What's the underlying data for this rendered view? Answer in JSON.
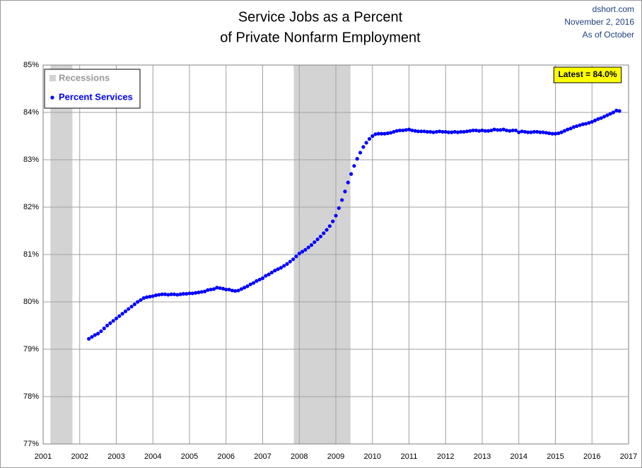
{
  "chart_data": {
    "type": "scatter",
    "title": [
      "Service Jobs as a Percent",
      "of Private Nonfarm Employment"
    ],
    "notes": [
      "dshort.com",
      "November 2, 2016",
      "As of October"
    ],
    "annotation": "Latest = 84.0%",
    "xlim": [
      2001,
      2017
    ],
    "xticks": [
      2001,
      2002,
      2003,
      2004,
      2005,
      2006,
      2007,
      2008,
      2009,
      2010,
      2011,
      2012,
      2013,
      2014,
      2015,
      2016,
      2017
    ],
    "ylim": [
      77,
      85
    ],
    "yticks": [
      {
        "value": 77,
        "label": "77%"
      },
      {
        "value": 78,
        "label": "78%"
      },
      {
        "value": 79,
        "label": "79%"
      },
      {
        "value": 80,
        "label": "80%"
      },
      {
        "value": 81,
        "label": "81%"
      },
      {
        "value": 82,
        "label": "82%"
      },
      {
        "value": 83,
        "label": "83%"
      },
      {
        "value": 84,
        "label": "84%"
      },
      {
        "value": 85,
        "label": "85%"
      }
    ],
    "grid": true,
    "legend": "top-left",
    "recessions": {
      "name": "Recessions",
      "color": "#d3d3d3",
      "spans": [
        [
          2001.2,
          2001.8
        ],
        [
          2007.85,
          2009.4
        ]
      ]
    },
    "x": [
      2002.25,
      2002.333,
      2002.417,
      2002.5,
      2002.583,
      2002.667,
      2002.75,
      2002.833,
      2002.917,
      2003.0,
      2003.083,
      2003.167,
      2003.25,
      2003.333,
      2003.417,
      2003.5,
      2003.583,
      2003.667,
      2003.75,
      2003.833,
      2003.917,
      2004.0,
      2004.083,
      2004.167,
      2004.25,
      2004.333,
      2004.417,
      2004.5,
      2004.583,
      2004.667,
      2004.75,
      2004.833,
      2004.917,
      2005.0,
      2005.083,
      2005.167,
      2005.25,
      2005.333,
      2005.417,
      2005.5,
      2005.583,
      2005.667,
      2005.75,
      2005.833,
      2005.917,
      2006.0,
      2006.083,
      2006.167,
      2006.25,
      2006.333,
      2006.417,
      2006.5,
      2006.583,
      2006.667,
      2006.75,
      2006.833,
      2006.917,
      2007.0,
      2007.083,
      2007.167,
      2007.25,
      2007.333,
      2007.417,
      2007.5,
      2007.583,
      2007.667,
      2007.75,
      2007.833,
      2007.917,
      2008.0,
      2008.083,
      2008.167,
      2008.25,
      2008.333,
      2008.417,
      2008.5,
      2008.583,
      2008.667,
      2008.75,
      2008.833,
      2008.917,
      2009.0,
      2009.083,
      2009.167,
      2009.25,
      2009.333,
      2009.417,
      2009.5,
      2009.583,
      2009.667,
      2009.75,
      2009.833,
      2009.917,
      2010.0,
      2010.083,
      2010.167,
      2010.25,
      2010.333,
      2010.417,
      2010.5,
      2010.583,
      2010.667,
      2010.75,
      2010.833,
      2010.917,
      2011.0,
      2011.083,
      2011.167,
      2011.25,
      2011.333,
      2011.417,
      2011.5,
      2011.583,
      2011.667,
      2011.75,
      2011.833,
      2011.917,
      2012.0,
      2012.083,
      2012.167,
      2012.25,
      2012.333,
      2012.417,
      2012.5,
      2012.583,
      2012.667,
      2012.75,
      2012.833,
      2012.917,
      2013.0,
      2013.083,
      2013.167,
      2013.25,
      2013.333,
      2013.417,
      2013.5,
      2013.583,
      2013.667,
      2013.75,
      2013.833,
      2013.917,
      2014.0,
      2014.083,
      2014.167,
      2014.25,
      2014.333,
      2014.417,
      2014.5,
      2014.583,
      2014.667,
      2014.75,
      2014.833,
      2014.917,
      2015.0,
      2015.083,
      2015.167,
      2015.25,
      2015.333,
      2015.417,
      2015.5,
      2015.583,
      2015.667,
      2015.75,
      2015.833,
      2015.917,
      2016.0,
      2016.083,
      2016.167,
      2016.25,
      2016.333,
      2016.417,
      2016.5,
      2016.583,
      2016.667,
      2016.75
    ],
    "series": [
      {
        "name": "Percent Services",
        "color": "#0000ff",
        "values": [
          79.22,
          79.26,
          79.3,
          79.33,
          79.38,
          79.44,
          79.5,
          79.55,
          79.6,
          79.65,
          79.7,
          79.75,
          79.8,
          79.85,
          79.9,
          79.95,
          80.0,
          80.04,
          80.08,
          80.1,
          80.11,
          80.12,
          80.14,
          80.15,
          80.16,
          80.16,
          80.15,
          80.16,
          80.16,
          80.15,
          80.16,
          80.17,
          80.17,
          80.18,
          80.18,
          80.19,
          80.2,
          80.21,
          80.22,
          80.25,
          80.26,
          80.27,
          80.3,
          80.29,
          80.28,
          80.26,
          80.26,
          80.24,
          80.23,
          80.24,
          80.27,
          80.3,
          80.33,
          80.37,
          80.4,
          80.44,
          80.47,
          80.5,
          80.55,
          80.58,
          80.62,
          80.66,
          80.69,
          80.72,
          80.76,
          80.8,
          80.85,
          80.9,
          80.96,
          81.02,
          81.06,
          81.1,
          81.15,
          81.2,
          81.26,
          81.32,
          81.38,
          81.45,
          81.52,
          81.6,
          81.7,
          81.82,
          81.98,
          82.15,
          82.33,
          82.52,
          82.7,
          82.87,
          83.02,
          83.15,
          83.27,
          83.36,
          83.44,
          83.5,
          83.54,
          83.55,
          83.55,
          83.55,
          83.56,
          83.57,
          83.59,
          83.61,
          83.62,
          83.62,
          83.63,
          83.64,
          83.62,
          83.61,
          83.6,
          83.6,
          83.6,
          83.59,
          83.59,
          83.58,
          83.59,
          83.6,
          83.59,
          83.59,
          83.58,
          83.58,
          83.59,
          83.58,
          83.59,
          83.59,
          83.6,
          83.61,
          83.62,
          83.62,
          83.61,
          83.62,
          83.61,
          83.61,
          83.62,
          83.64,
          83.63,
          83.63,
          83.64,
          83.62,
          83.61,
          83.62,
          83.62,
          83.58,
          83.6,
          83.59,
          83.58,
          83.58,
          83.59,
          83.59,
          83.58,
          83.58,
          83.57,
          83.56,
          83.55,
          83.55,
          83.56,
          83.58,
          83.61,
          83.64,
          83.66,
          83.69,
          83.71,
          83.73,
          83.75,
          83.76,
          83.78,
          83.8,
          83.83,
          83.86,
          83.88,
          83.91,
          83.94,
          83.97,
          84.0,
          84.04,
          84.03
        ]
      }
    ]
  }
}
